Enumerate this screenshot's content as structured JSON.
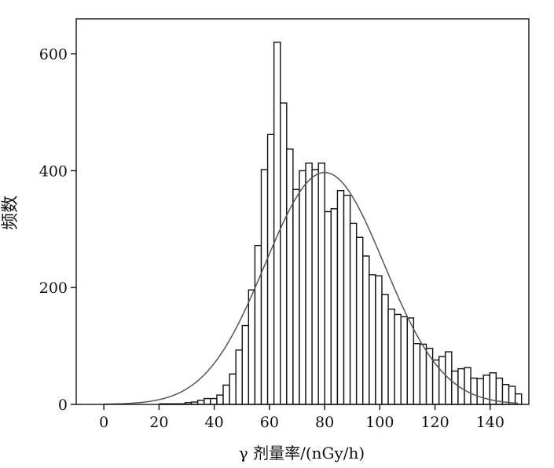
{
  "chart_data": {
    "type": "bar",
    "subtype": "histogram",
    "xlabel": "γ 剂量率/(nGy/h)",
    "ylabel": "频数",
    "xlim": [
      -10,
      154
    ],
    "ylim": [
      0,
      660
    ],
    "grid": false,
    "legend": "none",
    "bin_width": 2.3,
    "x_ticks": [
      0,
      20,
      40,
      60,
      80,
      100,
      120,
      140
    ],
    "y_ticks": [
      0,
      200,
      400,
      600
    ],
    "bins": [
      {
        "x": 21.4,
        "y": 1
      },
      {
        "x": 23.7,
        "y": 1
      },
      {
        "x": 26.0,
        "y": 1
      },
      {
        "x": 28.3,
        "y": 1
      },
      {
        "x": 30.6,
        "y": 3
      },
      {
        "x": 32.9,
        "y": 4
      },
      {
        "x": 35.2,
        "y": 7
      },
      {
        "x": 37.5,
        "y": 10
      },
      {
        "x": 39.8,
        "y": 10
      },
      {
        "x": 42.1,
        "y": 16
      },
      {
        "x": 44.4,
        "y": 33
      },
      {
        "x": 46.7,
        "y": 52
      },
      {
        "x": 49.0,
        "y": 93
      },
      {
        "x": 51.3,
        "y": 135
      },
      {
        "x": 53.6,
        "y": 196
      },
      {
        "x": 55.9,
        "y": 272
      },
      {
        "x": 58.2,
        "y": 402
      },
      {
        "x": 60.5,
        "y": 462
      },
      {
        "x": 62.8,
        "y": 620
      },
      {
        "x": 65.1,
        "y": 516
      },
      {
        "x": 67.4,
        "y": 437
      },
      {
        "x": 69.7,
        "y": 368
      },
      {
        "x": 72.0,
        "y": 400
      },
      {
        "x": 74.3,
        "y": 413
      },
      {
        "x": 76.6,
        "y": 402
      },
      {
        "x": 78.9,
        "y": 413
      },
      {
        "x": 81.2,
        "y": 330
      },
      {
        "x": 83.5,
        "y": 335
      },
      {
        "x": 85.8,
        "y": 366
      },
      {
        "x": 88.1,
        "y": 358
      },
      {
        "x": 90.4,
        "y": 310
      },
      {
        "x": 92.7,
        "y": 286
      },
      {
        "x": 95.0,
        "y": 254
      },
      {
        "x": 97.3,
        "y": 222
      },
      {
        "x": 99.6,
        "y": 220
      },
      {
        "x": 101.9,
        "y": 188
      },
      {
        "x": 104.2,
        "y": 163
      },
      {
        "x": 106.5,
        "y": 154
      },
      {
        "x": 108.8,
        "y": 150
      },
      {
        "x": 111.1,
        "y": 148
      },
      {
        "x": 113.4,
        "y": 104
      },
      {
        "x": 115.7,
        "y": 103
      },
      {
        "x": 118.0,
        "y": 96
      },
      {
        "x": 120.3,
        "y": 76
      },
      {
        "x": 122.6,
        "y": 82
      },
      {
        "x": 124.9,
        "y": 90
      },
      {
        "x": 127.2,
        "y": 57
      },
      {
        "x": 129.5,
        "y": 61
      },
      {
        "x": 131.8,
        "y": 63
      },
      {
        "x": 134.1,
        "y": 45
      },
      {
        "x": 136.4,
        "y": 44
      },
      {
        "x": 138.7,
        "y": 50
      },
      {
        "x": 141.0,
        "y": 54
      },
      {
        "x": 143.3,
        "y": 45
      },
      {
        "x": 145.6,
        "y": 34
      },
      {
        "x": 147.9,
        "y": 31
      },
      {
        "x": 150.2,
        "y": 18
      }
    ],
    "fit_curve": {
      "type": "normal",
      "mean": 80,
      "sd": 21.5,
      "peak": 397,
      "x_range": [
        0,
        150
      ]
    }
  }
}
